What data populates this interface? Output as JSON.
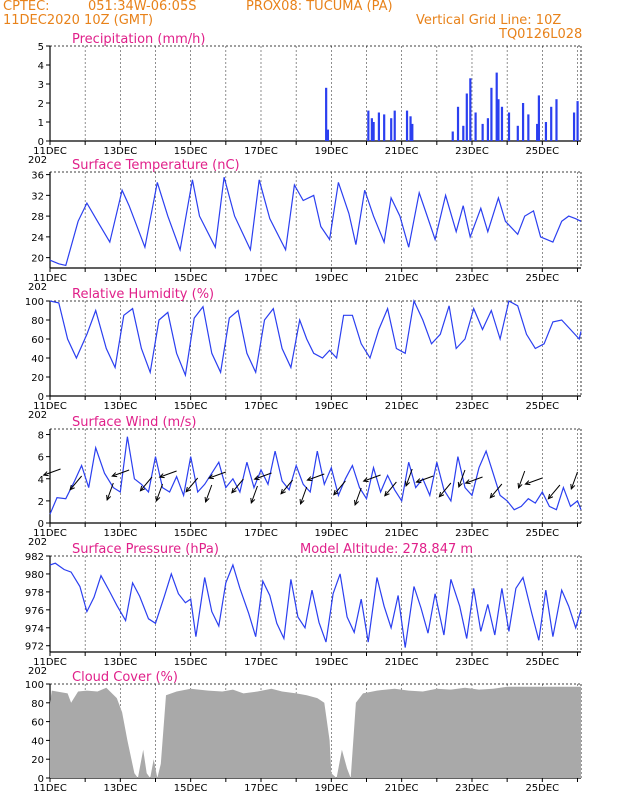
{
  "header": {
    "source": "CPTEC:",
    "coords": "051:34W-06:05S",
    "station": "PROX08: TUCUMA (PA)",
    "datetime": "11DEC2020 10Z (GMT)",
    "grid_note": "Vertical Grid Line: 10Z",
    "code": "TQ0126L028"
  },
  "colors": {
    "header": "#e8821a",
    "title": "#e0208a",
    "line": "#2b3ff0",
    "cloud": "#a9a9a9"
  },
  "x_axis": {
    "labels": [
      "11DEC",
      "13DEC",
      "15DEC",
      "17DEC",
      "19DEC",
      "21DEC",
      "23DEC",
      "25DEC"
    ],
    "label_days": [
      11,
      13,
      15,
      17,
      19,
      21,
      23,
      25
    ],
    "year_fragment": "202",
    "range_days": [
      11,
      26.1
    ]
  },
  "chart_data": [
    {
      "type": "bar",
      "title": "Precipitation (mm/h)",
      "ylim": [
        0,
        5
      ],
      "yticks": [
        0,
        1,
        2,
        3,
        4,
        5
      ],
      "x_days": [
        18.85,
        18.9,
        20.05,
        20.15,
        20.2,
        20.35,
        20.5,
        20.7,
        20.8,
        21.15,
        21.25,
        21.3,
        22.45,
        22.6,
        22.75,
        22.85,
        22.95,
        23.1,
        23.3,
        23.45,
        23.55,
        23.7,
        23.75,
        23.85,
        24.05,
        24.3,
        24.45,
        24.6,
        24.85,
        24.9,
        25.1,
        25.25,
        25.4,
        25.9,
        26.0
      ],
      "values": [
        2.8,
        0.6,
        1.6,
        1.2,
        1.0,
        1.5,
        1.4,
        1.2,
        1.6,
        1.6,
        1.3,
        0.9,
        0.5,
        1.8,
        0.8,
        2.5,
        3.3,
        1.5,
        0.9,
        1.2,
        2.8,
        3.6,
        2.2,
        1.8,
        1.5,
        0.8,
        2.0,
        1.4,
        0.9,
        2.4,
        1.0,
        1.8,
        2.2,
        1.5,
        2.1
      ]
    },
    {
      "type": "line",
      "title": "Surface Temperature (nC)",
      "ylim": [
        18,
        36.5
      ],
      "yticks": [
        20,
        24,
        28,
        32,
        36
      ],
      "series": [
        {
          "x": [
            11.0,
            11.25,
            11.45,
            11.8,
            12.05,
            12.35,
            12.7,
            13.05,
            13.25,
            13.7,
            14.05,
            14.35,
            14.7,
            15.05,
            15.25,
            15.7,
            15.95,
            16.25,
            16.7,
            16.95,
            17.25,
            17.7,
            17.95,
            18.2,
            18.5,
            18.7,
            18.95,
            19.2,
            19.5,
            19.7,
            19.95,
            20.2,
            20.5,
            20.7,
            20.95,
            21.2,
            21.5,
            21.7,
            21.95,
            22.25,
            22.55,
            22.75,
            22.95,
            23.25,
            23.45,
            23.75,
            23.95,
            24.3,
            24.5,
            24.75,
            24.95,
            25.3,
            25.55,
            25.75,
            25.95,
            26.1
          ],
          "y": [
            19.5,
            18.8,
            18.5,
            27.0,
            30.5,
            27.0,
            23.0,
            33.0,
            30.0,
            22.0,
            34.5,
            28.0,
            21.5,
            35.0,
            28.0,
            22.0,
            35.5,
            28.0,
            21.5,
            35.0,
            27.5,
            21.5,
            34.0,
            31.0,
            32.0,
            26.0,
            23.5,
            34.5,
            28.5,
            22.5,
            33.0,
            28.0,
            23.0,
            31.5,
            28.0,
            22.0,
            32.5,
            28.5,
            23.5,
            32.0,
            25.0,
            30.0,
            24.0,
            29.5,
            25.0,
            31.5,
            27.0,
            24.5,
            28.0,
            29.0,
            24.0,
            23.0,
            27.0,
            28.0,
            27.5,
            27.0
          ]
        }
      ]
    },
    {
      "type": "line",
      "title": "Relative Humidity (%)",
      "ylim": [
        0,
        100
      ],
      "yticks": [
        0,
        20,
        40,
        60,
        80,
        100
      ],
      "series": [
        {
          "x": [
            11.0,
            11.25,
            11.5,
            11.75,
            12.05,
            12.3,
            12.6,
            12.85,
            13.1,
            13.35,
            13.6,
            13.85,
            14.1,
            14.35,
            14.6,
            14.85,
            15.1,
            15.35,
            15.6,
            15.85,
            16.1,
            16.35,
            16.6,
            16.85,
            17.1,
            17.35,
            17.6,
            17.85,
            18.1,
            18.3,
            18.5,
            18.75,
            18.95,
            19.15,
            19.35,
            19.6,
            19.85,
            20.1,
            20.35,
            20.6,
            20.85,
            21.1,
            21.35,
            21.6,
            21.85,
            22.1,
            22.35,
            22.55,
            22.8,
            23.05,
            23.3,
            23.55,
            23.8,
            24.05,
            24.3,
            24.55,
            24.8,
            25.05,
            25.3,
            25.55,
            25.8,
            26.05,
            26.1
          ],
          "y": [
            100,
            98,
            60,
            40,
            65,
            90,
            50,
            30,
            85,
            92,
            50,
            25,
            80,
            88,
            45,
            22,
            82,
            94,
            45,
            25,
            82,
            90,
            45,
            25,
            80,
            92,
            50,
            30,
            80,
            60,
            45,
            40,
            48,
            40,
            85,
            85,
            55,
            40,
            70,
            92,
            50,
            45,
            100,
            80,
            55,
            65,
            95,
            50,
            60,
            92,
            70,
            90,
            60,
            100,
            95,
            65,
            50,
            55,
            78,
            80,
            70,
            60,
            68
          ]
        }
      ]
    },
    {
      "type": "line",
      "title": "Surface Wind (m/s)",
      "ylim": [
        0,
        8.5
      ],
      "yticks": [
        0,
        2,
        4,
        6,
        8
      ],
      "series": [
        {
          "x": [
            11.0,
            11.2,
            11.45,
            11.7,
            11.9,
            12.1,
            12.3,
            12.55,
            12.8,
            13.0,
            13.2,
            13.4,
            13.6,
            13.8,
            14.0,
            14.2,
            14.4,
            14.6,
            14.8,
            15.0,
            15.2,
            15.4,
            15.6,
            15.8,
            16.0,
            16.2,
            16.4,
            16.6,
            16.8,
            17.0,
            17.2,
            17.4,
            17.6,
            17.8,
            18.0,
            18.2,
            18.4,
            18.6,
            18.8,
            19.0,
            19.2,
            19.4,
            19.6,
            19.8,
            20.0,
            20.2,
            20.4,
            20.6,
            20.8,
            21.0,
            21.2,
            21.4,
            21.6,
            21.8,
            22.0,
            22.2,
            22.4,
            22.6,
            22.8,
            23.0,
            23.2,
            23.4,
            23.6,
            23.8,
            24.0,
            24.2,
            24.4,
            24.6,
            24.8,
            25.0,
            25.2,
            25.4,
            25.6,
            25.8,
            26.0,
            26.1
          ],
          "y": [
            0.8,
            2.3,
            2.2,
            3.8,
            5.2,
            3.2,
            6.8,
            4.5,
            3.2,
            2.8,
            7.8,
            4.0,
            3.5,
            2.8,
            6.0,
            3.2,
            2.8,
            4.2,
            2.5,
            6.0,
            2.8,
            3.5,
            4.5,
            5.5,
            3.2,
            4.0,
            2.8,
            5.5,
            3.2,
            4.8,
            3.5,
            6.5,
            3.8,
            3.0,
            5.2,
            3.5,
            2.8,
            6.5,
            3.5,
            5.0,
            2.5,
            4.0,
            5.2,
            3.2,
            2.2,
            5.0,
            2.8,
            4.3,
            3.0,
            2.0,
            5.5,
            3.2,
            4.0,
            2.5,
            5.5,
            3.0,
            2.0,
            6.0,
            3.2,
            2.5,
            5.0,
            6.5,
            4.5,
            2.5,
            2.0,
            1.2,
            1.5,
            2.2,
            1.8,
            2.8,
            1.5,
            1.2,
            3.2,
            1.5,
            2.0,
            1.2
          ]
        }
      ],
      "arrows_x_days": [
        11.3,
        11.9,
        12.8,
        13.25,
        13.9,
        14.2,
        14.6,
        15.2,
        15.6,
        16.0,
        16.5,
        16.9,
        17.3,
        17.9,
        18.3,
        18.8,
        19.4,
        19.85,
        20.4,
        20.85,
        21.3,
        21.9,
        22.4,
        22.8,
        23.3,
        23.85,
        24.5,
        25.0,
        25.5,
        26.0
      ]
    },
    {
      "type": "line",
      "title": "Surface Pressure (hPa)",
      "annotation": "Model Altitude: 278.847 m",
      "ylim": [
        971.3,
        982
      ],
      "yticks": [
        972,
        974,
        976,
        978,
        980,
        982
      ],
      "series": [
        {
          "x": [
            11.0,
            11.15,
            11.4,
            11.6,
            11.85,
            12.05,
            12.25,
            12.45,
            12.7,
            12.9,
            13.15,
            13.35,
            13.55,
            13.8,
            14.0,
            14.25,
            14.45,
            14.65,
            14.85,
            15.0,
            15.15,
            15.4,
            15.6,
            15.8,
            16.0,
            16.2,
            16.4,
            16.65,
            16.85,
            17.05,
            17.25,
            17.45,
            17.65,
            17.85,
            18.05,
            18.25,
            18.45,
            18.65,
            18.85,
            19.05,
            19.25,
            19.45,
            19.65,
            19.85,
            20.05,
            20.3,
            20.5,
            20.7,
            20.9,
            21.1,
            21.35,
            21.55,
            21.75,
            21.95,
            22.2,
            22.4,
            22.65,
            22.85,
            23.05,
            23.25,
            23.45,
            23.65,
            23.85,
            24.05,
            24.25,
            24.45,
            24.7,
            24.9,
            25.1,
            25.3,
            25.55,
            25.75,
            25.95,
            26.1
          ],
          "y": [
            981,
            981.2,
            980.5,
            980.2,
            978.6,
            975.8,
            977.4,
            979.8,
            978.0,
            976.5,
            974.8,
            979.0,
            977.5,
            975.0,
            974.5,
            977.5,
            980.0,
            977.8,
            976.8,
            977.2,
            973.0,
            979.6,
            975.8,
            974.2,
            979.0,
            981.0,
            978.4,
            975.6,
            973.0,
            979.2,
            977.6,
            974.5,
            972.8,
            979.4,
            975.2,
            974.0,
            978.2,
            974.6,
            972.4,
            977.8,
            980.0,
            975.2,
            973.5,
            977.2,
            972.4,
            979.6,
            976.4,
            974.0,
            977.6,
            971.8,
            978.6,
            976.2,
            973.4,
            977.8,
            973.2,
            979.4,
            976.4,
            972.8,
            978.4,
            973.6,
            976.6,
            973.2,
            978.4,
            973.6,
            978.4,
            979.6,
            975.6,
            972.6,
            978.2,
            973.0,
            978.2,
            976.4,
            974.0,
            976.0
          ]
        }
      ]
    },
    {
      "type": "area",
      "title": "Cloud Cover (%)",
      "ylim": [
        0,
        100
      ],
      "yticks": [
        0,
        20,
        40,
        60,
        80,
        100
      ],
      "series": [
        {
          "x": [
            11.0,
            11.05,
            11.5,
            11.6,
            11.8,
            12.05,
            12.35,
            12.6,
            12.9,
            13.05,
            13.2,
            13.4,
            13.5,
            13.65,
            13.75,
            13.85,
            13.95,
            14.05,
            14.15,
            14.3,
            14.6,
            15.0,
            15.5,
            15.9,
            16.2,
            16.5,
            16.9,
            17.3,
            17.6,
            18.0,
            18.3,
            18.6,
            18.8,
            18.95,
            19.0,
            19.15,
            19.3,
            19.45,
            19.55,
            19.7,
            19.9,
            20.3,
            20.8,
            21.2,
            21.6,
            22.0,
            22.4,
            22.8,
            23.2,
            23.6,
            24.0,
            24.5,
            25.0,
            25.5,
            26.0,
            26.1
          ],
          "y": [
            80,
            93,
            90,
            80,
            92,
            93,
            92,
            96,
            85,
            70,
            40,
            5,
            0,
            30,
            5,
            0,
            20,
            0,
            15,
            88,
            92,
            95,
            93,
            92,
            94,
            90,
            92,
            95,
            92,
            90,
            88,
            85,
            80,
            40,
            5,
            0,
            30,
            10,
            0,
            80,
            90,
            93,
            95,
            93,
            92,
            95,
            94,
            96,
            94,
            95,
            97,
            97,
            97,
            97,
            97,
            97
          ]
        }
      ]
    }
  ]
}
